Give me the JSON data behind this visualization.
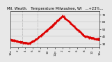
{
  "title": "Mil. Weath.   Temperature Milwaukee, WI   ...+23%...",
  "line_color": "#dd0000",
  "background_color": "#e8e8e8",
  "plot_bg_color": "#e8e8e8",
  "ylim": [
    25,
    75
  ],
  "y_ticks": [
    30,
    40,
    50,
    60,
    70
  ],
  "vline_positions": [
    0.13,
    0.3
  ],
  "vline_color": "#888888",
  "vline_style": ":",
  "line_width": 0.7,
  "linestyle": "--",
  "marker": ".",
  "markersize": 1.2,
  "title_fontsize": 3.8,
  "tick_fontsize": 3.0,
  "x_tick_labels": [
    "12a",
    "2",
    "4",
    "6",
    "8",
    "10",
    "12p",
    "2",
    "4",
    "6",
    "8",
    "10",
    "12a"
  ],
  "grid_color": "#bbbbbb"
}
